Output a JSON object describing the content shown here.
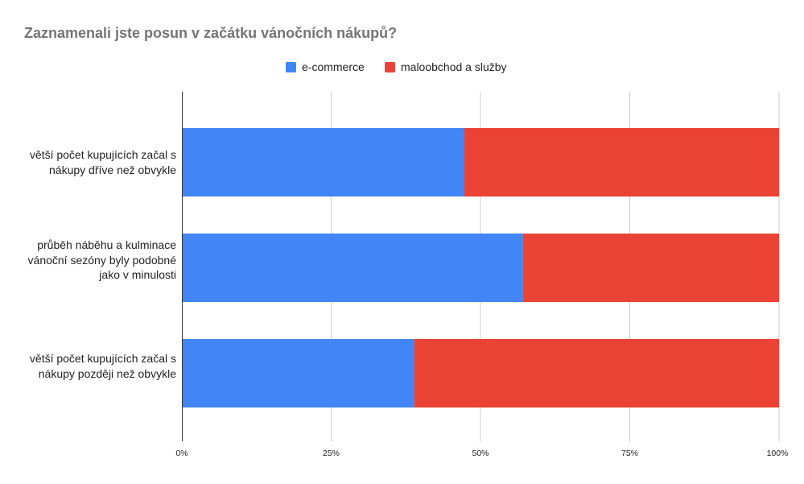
{
  "chart_data": {
    "type": "bar",
    "orientation": "horizontal",
    "stacked": "percent",
    "title": "Zaznamenali jste posun v začátku vánočních nákupů?",
    "categories": [
      "větší počet kupujících začal s nákupy dříve než obvykle",
      "průběh náběhu a kulminace vánoční sezóny byly podobné jako v minulosti",
      "větší počet kupujících začal s nákupy později než obvykle"
    ],
    "series": [
      {
        "name": "e-commerce",
        "values": [
          47.3,
          57.1,
          38.9
        ],
        "color": "#4285f4"
      },
      {
        "name": "maloobchod a služby",
        "values": [
          52.7,
          42.9,
          61.1
        ],
        "color": "#ea4335"
      }
    ],
    "xlim": [
      0,
      100
    ],
    "x_ticks": [
      "0%",
      "25%",
      "50%",
      "75%",
      "100%"
    ],
    "xlabel": "",
    "ylabel": "",
    "grid": true,
    "legend_position": "top"
  }
}
